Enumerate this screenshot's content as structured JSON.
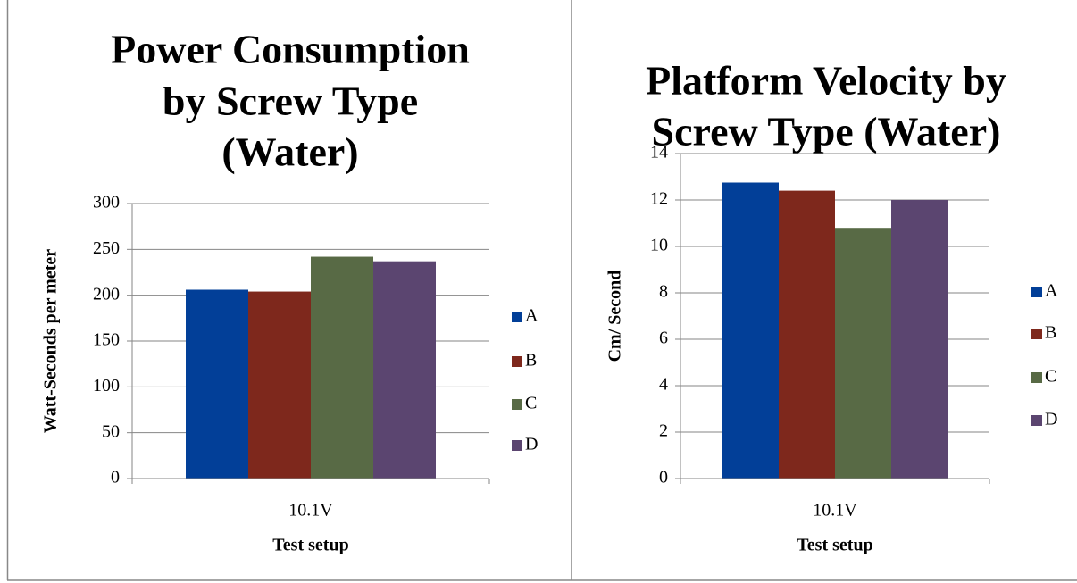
{
  "chart_data": [
    {
      "type": "bar",
      "title": [
        "Power Consumption",
        "by Screw Type",
        "(Water)"
      ],
      "xlabel": "Test setup",
      "ylabel": "Watt-Seconds per meter",
      "categories": [
        "10.1V"
      ],
      "series": [
        {
          "name": "A",
          "color": "#023f98",
          "values": [
            206
          ]
        },
        {
          "name": "B",
          "color": "#7e281c",
          "values": [
            204
          ]
        },
        {
          "name": "C",
          "color": "#586a45",
          "values": [
            242
          ]
        },
        {
          "name": "D",
          "color": "#5b4570",
          "values": [
            237
          ]
        }
      ],
      "ylim": [
        0,
        300
      ],
      "yticks": [
        0,
        50,
        100,
        150,
        200,
        250,
        300
      ],
      "grid": true,
      "legend": "right"
    },
    {
      "type": "bar",
      "title": [
        "Platform Velocity by",
        "Screw Type (Water)"
      ],
      "xlabel": "Test setup",
      "ylabel": "Cm/ Second",
      "categories": [
        "10.1V"
      ],
      "series": [
        {
          "name": "A",
          "color": "#023f98",
          "values": [
            12.75
          ]
        },
        {
          "name": "B",
          "color": "#7e281c",
          "values": [
            12.4
          ]
        },
        {
          "name": "C",
          "color": "#586a45",
          "values": [
            10.8
          ]
        },
        {
          "name": "D",
          "color": "#5b4570",
          "values": [
            12.0
          ]
        }
      ],
      "ylim": [
        0,
        14
      ],
      "yticks": [
        0,
        2,
        4,
        6,
        8,
        10,
        12,
        14
      ],
      "grid": true,
      "legend": "right"
    }
  ]
}
